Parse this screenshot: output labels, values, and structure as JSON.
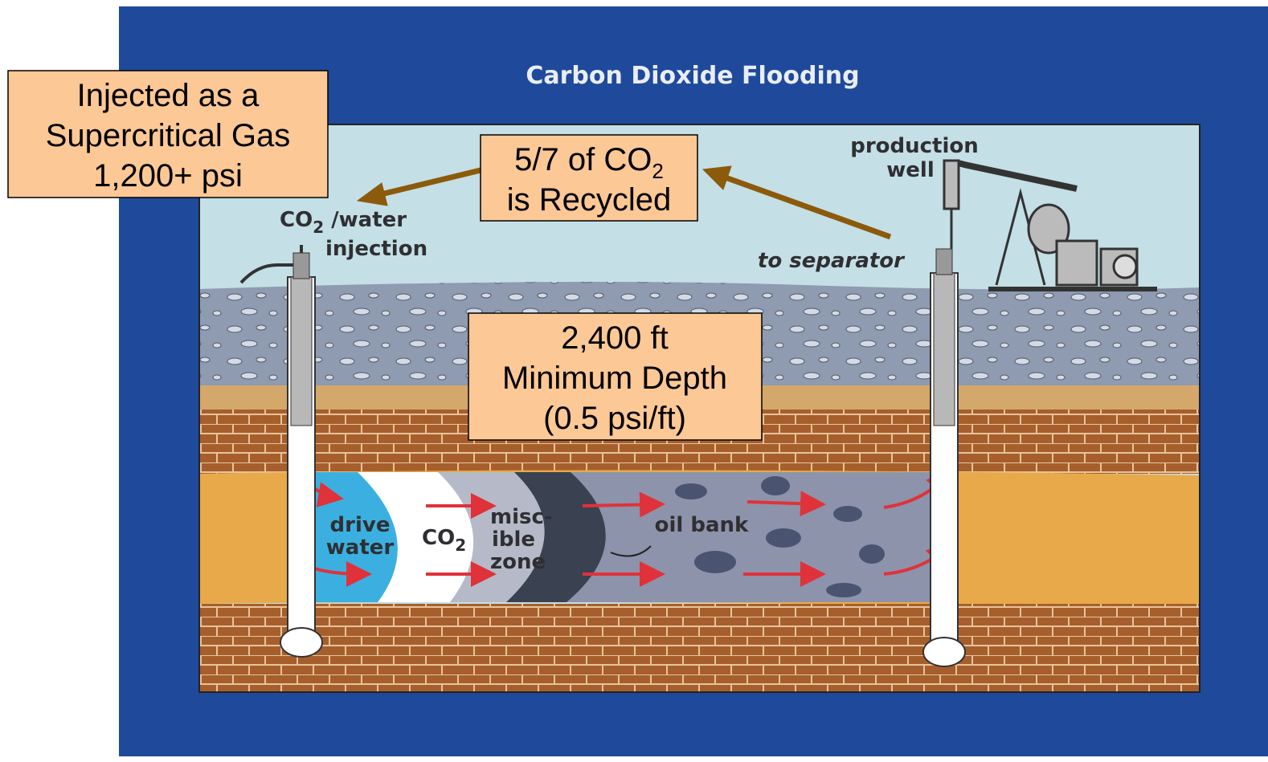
{
  "title": "Carbon Dioxide Flooding",
  "callouts": [
    {
      "lines": [
        "Injected as a",
        "Supercritical Gas",
        "1,200+ psi"
      ]
    },
    {
      "lines": [
        {
          "text": "5/7 of CO",
          "sub": "2"
        },
        "is Recycled"
      ]
    },
    {
      "lines": [
        "2,400 ft",
        "Minimum Depth",
        "(0.5 psi/ft)"
      ]
    }
  ],
  "labels": {
    "production_well": [
      "production",
      "well"
    ],
    "injection": [
      {
        "text": "CO",
        "sub": "2",
        "after": " /water"
      },
      "injection"
    ],
    "separator": "to separator",
    "drive_water": [
      "drive",
      "water"
    ],
    "co2": {
      "text": "CO",
      "sub": "2"
    },
    "miscible": [
      "misc-",
      "ible",
      "zone"
    ],
    "oil_bank": "oil bank"
  }
}
